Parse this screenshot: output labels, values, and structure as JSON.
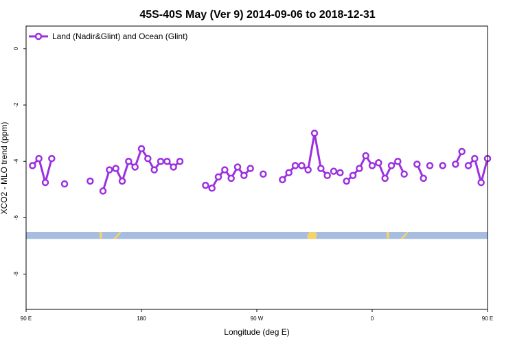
{
  "chart_data": {
    "type": "line",
    "title": "45S-40S May (Ver 9)   2014-09-06 to 2018-12-31",
    "xlabel": "Longitude (deg E)",
    "ylabel": "XCO2 - MLO trend (ppm)",
    "xlim": [
      90,
      450
    ],
    "ylim": [
      -9.25,
      0.8
    ],
    "x_ticks": [
      {
        "value": 90,
        "label": "90 E"
      },
      {
        "value": 180,
        "label": "180"
      },
      {
        "value": 270,
        "label": "90 W"
      },
      {
        "value": 360,
        "label": "0"
      },
      {
        "value": 450,
        "label": "90 E"
      },
      {
        "value": 540,
        "label": "180"
      }
    ],
    "y_ticks": [
      {
        "value": 0,
        "label": "0"
      },
      {
        "value": -2,
        "label": "-2"
      },
      {
        "value": -4,
        "label": "-4"
      },
      {
        "value": -6,
        "label": "-6"
      },
      {
        "value": -8,
        "label": "-8"
      }
    ],
    "grid": false,
    "legend_position": "top-left",
    "series": [
      {
        "name": "Land (Nadir&Glint) and Ocean (Glint)",
        "color": "#9b30e0",
        "segments": [
          [
            [
              95,
              -4.15
            ],
            [
              100,
              -3.9
            ],
            [
              105,
              -4.75
            ],
            [
              110,
              -3.9
            ]
          ],
          [
            [
              120,
              -4.8
            ]
          ],
          [
            [
              140,
              -4.7
            ]
          ],
          [
            [
              150,
              -5.05
            ],
            [
              155,
              -4.3
            ],
            [
              160,
              -4.25
            ],
            [
              165,
              -4.7
            ],
            [
              170,
              -4.0
            ],
            [
              175,
              -4.2
            ],
            [
              180,
              -3.55
            ],
            [
              185,
              -3.9
            ],
            [
              190,
              -4.3
            ],
            [
              195,
              -4.0
            ],
            [
              200,
              -4.0
            ],
            [
              205,
              -4.2
            ],
            [
              210,
              -4.0
            ]
          ],
          [
            [
              230,
              -4.85
            ],
            [
              235,
              -4.95
            ],
            [
              240,
              -4.55
            ],
            [
              245,
              -4.3
            ],
            [
              250,
              -4.6
            ],
            [
              255,
              -4.2
            ],
            [
              260,
              -4.5
            ],
            [
              265,
              -4.25
            ]
          ],
          [
            [
              275,
              -4.45
            ]
          ],
          [
            [
              290,
              -4.65
            ],
            [
              295,
              -4.4
            ],
            [
              300,
              -4.15
            ],
            [
              305,
              -4.15
            ],
            [
              310,
              -4.3
            ],
            [
              315,
              -3.0
            ],
            [
              320,
              -4.25
            ],
            [
              325,
              -4.5
            ]
          ],
          [
            [
              330,
              -4.35
            ],
            [
              335,
              -4.4
            ]
          ],
          [
            [
              340,
              -4.7
            ],
            [
              345,
              -4.5
            ],
            [
              350,
              -4.25
            ],
            [
              355,
              -3.8
            ],
            [
              360,
              -4.15
            ],
            [
              365,
              -4.05
            ],
            [
              370,
              -4.6
            ],
            [
              375,
              -4.15
            ],
            [
              380,
              -4.0
            ],
            [
              385,
              -4.45
            ]
          ],
          [
            [
              395,
              -4.1
            ],
            [
              400,
              -4.6
            ]
          ],
          [
            [
              405,
              -4.15
            ]
          ],
          [
            [
              415,
              -4.15
            ]
          ],
          [
            [
              425,
              -4.1
            ],
            [
              430,
              -3.65
            ]
          ],
          [
            [
              435,
              -4.15
            ],
            [
              440,
              -3.9
            ],
            [
              445,
              -4.75
            ],
            [
              450,
              -3.9
            ]
          ]
        ]
      }
    ],
    "land_ocean_strip": {
      "y_range": [
        -6.75,
        -6.5
      ],
      "ocean_color": "#a7bde0",
      "land_color": "#f5d36b",
      "land_patches": [
        [
          [
            147,
            -6.5
          ],
          [
            149,
            -6.5
          ],
          [
            149.5,
            -6.7
          ],
          [
            147.5,
            -6.75
          ]
        ],
        [
          [
            158,
            -6.75
          ],
          [
            161,
            -6.6
          ],
          [
            163,
            -6.5
          ],
          [
            164.5,
            -6.5
          ],
          [
            162,
            -6.65
          ],
          [
            160,
            -6.75
          ]
        ],
        [
          [
            311,
            -6.5
          ],
          [
            316,
            -6.5
          ],
          [
            317,
            -6.6
          ],
          [
            316,
            -6.75
          ],
          [
            310,
            -6.75
          ],
          [
            309,
            -6.65
          ]
        ],
        [
          [
            371,
            -6.5
          ],
          [
            373,
            -6.5
          ],
          [
            373.5,
            -6.7
          ],
          [
            371.5,
            -6.75
          ]
        ],
        [
          [
            382,
            -6.75
          ],
          [
            385,
            -6.6
          ],
          [
            387,
            -6.5
          ],
          [
            388.5,
            -6.5
          ],
          [
            386,
            -6.65
          ],
          [
            384,
            -6.75
          ]
        ]
      ]
    }
  }
}
